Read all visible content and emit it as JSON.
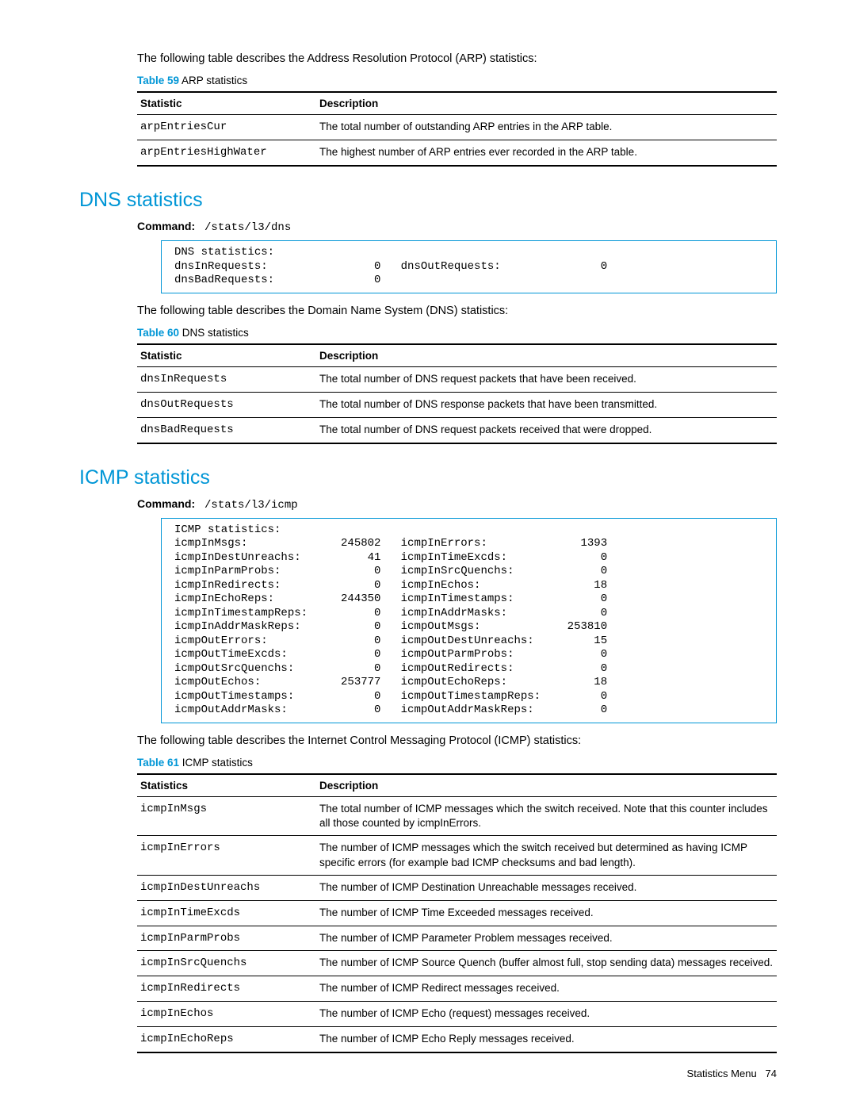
{
  "intro_arp": "The following table describes the Address Resolution Protocol (ARP) statistics:",
  "table59": {
    "label": "Table 59",
    "title": "ARP statistics",
    "headers": {
      "c1": "Statistic",
      "c2": "Description"
    },
    "rows": [
      {
        "stat": "arpEntriesCur",
        "desc": "The total number of outstanding ARP entries in the ARP table."
      },
      {
        "stat": "arpEntriesHighWater",
        "desc": "The highest number of ARP entries ever recorded in the ARP table."
      }
    ]
  },
  "dns": {
    "heading": "DNS statistics",
    "cmd_label": "Command:",
    "cmd": "/stats/l3/dns",
    "code": "DNS statistics:\ndnsInRequests:                0   dnsOutRequests:               0\ndnsBadRequests:               0",
    "intro": "The following table describes the Domain Name System (DNS) statistics:"
  },
  "table60": {
    "label": "Table 60",
    "title": "DNS statistics",
    "headers": {
      "c1": "Statistic",
      "c2": "Description"
    },
    "rows": [
      {
        "stat": "dnsInRequests",
        "desc": "The total number of DNS request packets that have been received."
      },
      {
        "stat": "dnsOutRequests",
        "desc": "The total number of DNS response packets that have been transmitted."
      },
      {
        "stat": "dnsBadRequests",
        "desc": "The total number of DNS request packets received that were dropped."
      }
    ]
  },
  "icmp": {
    "heading": "ICMP statistics",
    "cmd_label": "Command:",
    "cmd": "/stats/l3/icmp",
    "code": "ICMP statistics:\nicmpInMsgs:              245802   icmpInErrors:              1393\nicmpInDestUnreachs:          41   icmpInTimeExcds:              0\nicmpInParmProbs:              0   icmpInSrcQuenchs:             0\nicmpInRedirects:              0   icmpInEchos:                 18\nicmpInEchoReps:          244350   icmpInTimestamps:             0\nicmpInTimestampReps:          0   icmpInAddrMasks:              0\nicmpInAddrMaskReps:           0   icmpOutMsgs:             253810\nicmpOutErrors:                0   icmpOutDestUnreachs:         15\nicmpOutTimeExcds:             0   icmpOutParmProbs:             0\nicmpOutSrcQuenchs:            0   icmpOutRedirects:             0\nicmpOutEchos:            253777   icmpOutEchoReps:             18\nicmpOutTimestamps:            0   icmpOutTimestampReps:         0\nicmpOutAddrMasks:             0   icmpOutAddrMaskReps:          0",
    "intro": "The following table describes the Internet Control Messaging Protocol (ICMP) statistics:"
  },
  "table61": {
    "label": "Table 61",
    "title": "ICMP statistics",
    "headers": {
      "c1": "Statistics",
      "c2": "Description"
    },
    "rows": [
      {
        "stat": "icmpInMsgs",
        "desc": "The total number of ICMP messages which the switch received. Note that this counter includes all those counted by icmpInErrors."
      },
      {
        "stat": "icmpInErrors",
        "desc": "The number of ICMP messages which the switch received but determined as having ICMP specific errors (for example bad ICMP checksums and bad length)."
      },
      {
        "stat": "icmpInDestUnreachs",
        "desc": "The number of ICMP Destination Unreachable messages received."
      },
      {
        "stat": "icmpInTimeExcds",
        "desc": "The number of ICMP Time Exceeded messages received."
      },
      {
        "stat": "icmpInParmProbs",
        "desc": "The number of ICMP Parameter Problem messages received."
      },
      {
        "stat": "icmpInSrcQuenchs",
        "desc": "The number of ICMP Source Quench (buffer almost full, stop sending data) messages received."
      },
      {
        "stat": "icmpInRedirects",
        "desc": "The number of ICMP Redirect messages received."
      },
      {
        "stat": "icmpInEchos",
        "desc": "The number of ICMP Echo (request) messages received."
      },
      {
        "stat": "icmpInEchoReps",
        "desc": "The number of ICMP Echo Reply messages received."
      }
    ]
  },
  "footer": {
    "text": "Statistics Menu",
    "page": "74"
  }
}
